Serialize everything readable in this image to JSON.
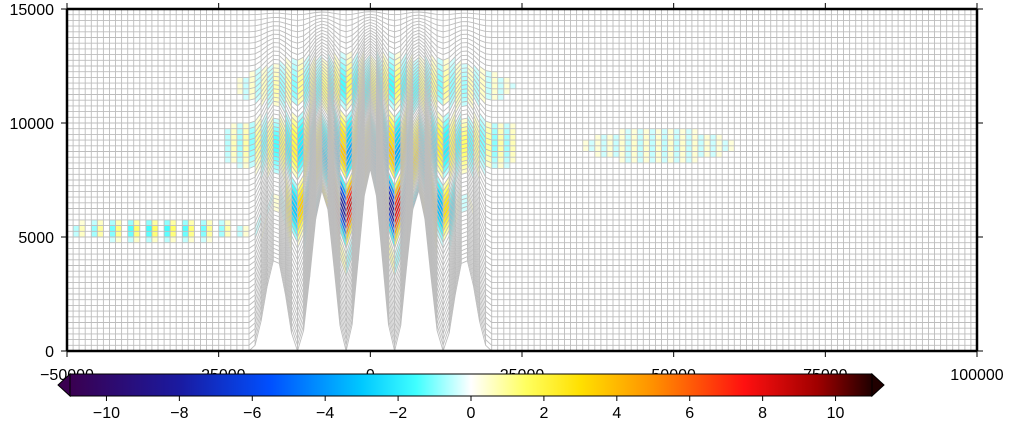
{
  "chart_data": {
    "type": "heatmap",
    "title": "",
    "xlabel": "",
    "ylabel": "",
    "xlim": [
      -50000,
      100000
    ],
    "ylim": [
      0,
      15000
    ],
    "x_ticks": [
      -50000,
      -25000,
      0,
      25000,
      50000,
      75000,
      100000
    ],
    "x_tick_labels": [
      "−50000",
      "−25000",
      "0",
      "25000",
      "50000",
      "75000",
      "100000"
    ],
    "y_ticks": [
      0,
      5000,
      10000,
      15000
    ],
    "y_tick_labels": [
      "0",
      "5000",
      "10000",
      "15000"
    ],
    "grid": "terrain-following mesh (light gray)",
    "terrain": {
      "description": "sinusoidal mountain ridges",
      "center_x": 0,
      "half_width": 20000,
      "ridge_spacing": 8000,
      "peak_height": 8000,
      "extra_edge_ridges": [
        -13000,
        13000
      ]
    },
    "colorbar": {
      "position": "bottom",
      "min": -11,
      "max": 11,
      "extend": "both",
      "ticks": [
        -10,
        -8,
        -6,
        -4,
        -2,
        0,
        2,
        4,
        6,
        8,
        10
      ],
      "tick_labels": [
        "−10",
        "−8",
        "−6",
        "−4",
        "−2",
        "0",
        "2",
        "4",
        "6",
        "8",
        "10"
      ],
      "colormap": [
        {
          "v": -11,
          "color": "#3a0050"
        },
        {
          "v": -8,
          "color": "#1a1aa0"
        },
        {
          "v": -5.5,
          "color": "#0050ff"
        },
        {
          "v": -3,
          "color": "#00c8ff"
        },
        {
          "v": -1.5,
          "color": "#40ffff"
        },
        {
          "v": 0,
          "color": "#ffffff"
        },
        {
          "v": 1.5,
          "color": "#ffff60"
        },
        {
          "v": 3,
          "color": "#ffe000"
        },
        {
          "v": 5,
          "color": "#ff9000"
        },
        {
          "v": 7.5,
          "color": "#ff1010"
        },
        {
          "v": 9.5,
          "color": "#a00000"
        },
        {
          "v": 11,
          "color": "#200000"
        }
      ]
    },
    "field_features": [
      {
        "name": "upstream wave band",
        "x_range": [
          -50000,
          -20000
        ],
        "y_range": [
          4600,
          5800
        ],
        "amplitude": 2.5,
        "wavelength": 1500
      },
      {
        "name": "central wave packet",
        "x_range": [
          -12000,
          12000
        ],
        "y_range": [
          4000,
          8500
        ],
        "amplitude": 9
      },
      {
        "name": "upper wave field",
        "x_range": [
          -20000,
          20000
        ],
        "y_range": [
          6000,
          13000
        ],
        "amplitude": 3
      },
      {
        "name": "downstream faint field",
        "x_range": [
          25000,
          70000
        ],
        "y_range": [
          5000,
          13000
        ],
        "amplitude": 0.5
      }
    ]
  }
}
